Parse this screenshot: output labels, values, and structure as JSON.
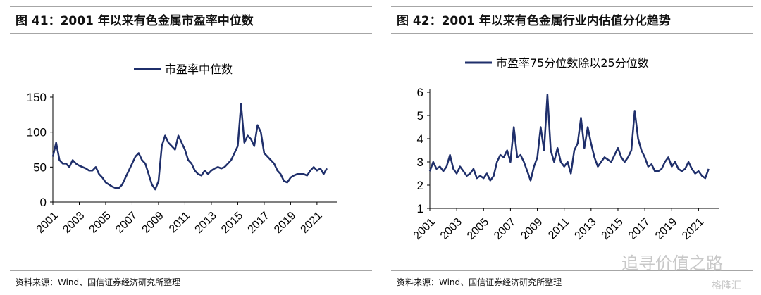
{
  "panels": [
    {
      "title": "图 41：2001 年以来有色金属市盈率中位数",
      "source": "资料来源：Wind、国信证券经济研究所整理"
    },
    {
      "title": "图 42：2001 年以来有色金属行业内估值分化趋势",
      "source": "资料来源：Wind、国信证券经济研究所整理"
    }
  ],
  "watermark": {
    "text": "追寻价值之路",
    "logo": "格隆汇"
  },
  "chart_data": [
    {
      "type": "line",
      "title": "",
      "legend": "市盈率中位数",
      "legend_position": "top-center",
      "color": "#1f2f6b",
      "ylim": [
        0,
        150
      ],
      "yticks": [
        0,
        50,
        100,
        150
      ],
      "ytick_labels": [
        "0",
        "50",
        "100",
        "150"
      ],
      "xticks": [
        "2001",
        "2003",
        "2005",
        "2007",
        "2009",
        "2011",
        "2013",
        "2015",
        "2017",
        "2019",
        "2021"
      ],
      "x_start": 2001,
      "x_step": 0.25,
      "values": [
        65,
        85,
        60,
        55,
        55,
        50,
        60,
        55,
        52,
        50,
        48,
        45,
        45,
        50,
        40,
        35,
        28,
        25,
        22,
        20,
        20,
        25,
        35,
        45,
        55,
        65,
        70,
        60,
        55,
        40,
        25,
        18,
        30,
        80,
        95,
        85,
        80,
        75,
        95,
        85,
        75,
        60,
        55,
        45,
        40,
        38,
        45,
        40,
        45,
        48,
        50,
        48,
        50,
        55,
        60,
        70,
        80,
        140,
        85,
        95,
        90,
        80,
        110,
        100,
        70,
        65,
        60,
        55,
        45,
        40,
        30,
        28,
        35,
        38,
        40,
        40,
        40,
        38,
        45,
        50,
        45,
        48,
        40,
        48
      ]
    },
    {
      "type": "line",
      "title": "",
      "legend": "市盈率75分位数除以25分位数",
      "legend_position": "top-center",
      "color": "#1f2f6b",
      "ylim": [
        1,
        6
      ],
      "yticks": [
        1,
        2,
        3,
        4,
        5,
        6
      ],
      "ytick_labels": [
        "1",
        "2",
        "3",
        "4",
        "5",
        "6"
      ],
      "xticks": [
        "2001",
        "2003",
        "2005",
        "2007",
        "2009",
        "2011",
        "2013",
        "2015",
        "2017",
        "2019",
        "2021"
      ],
      "x_start": 2001,
      "x_step": 0.25,
      "values": [
        2.6,
        3.0,
        2.7,
        2.8,
        2.6,
        2.8,
        3.3,
        2.7,
        2.5,
        2.8,
        2.6,
        2.4,
        2.5,
        2.7,
        2.3,
        2.4,
        2.3,
        2.5,
        2.2,
        2.4,
        3.0,
        3.3,
        3.2,
        3.5,
        3.0,
        4.5,
        3.2,
        3.3,
        3.0,
        2.6,
        2.2,
        2.8,
        3.2,
        4.5,
        3.5,
        5.9,
        3.5,
        3.0,
        3.6,
        3.0,
        2.8,
        3.0,
        2.5,
        3.5,
        3.8,
        4.9,
        3.6,
        4.5,
        3.8,
        3.2,
        2.8,
        3.0,
        3.2,
        3.1,
        3.0,
        3.3,
        3.6,
        3.2,
        3.0,
        3.2,
        3.5,
        5.2,
        4.0,
        3.5,
        3.2,
        2.8,
        2.9,
        2.6,
        2.6,
        2.7,
        3.0,
        3.2,
        2.8,
        3.0,
        2.7,
        2.6,
        2.7,
        3.0,
        2.7,
        2.5,
        2.6,
        2.4,
        2.3,
        2.7
      ]
    }
  ]
}
